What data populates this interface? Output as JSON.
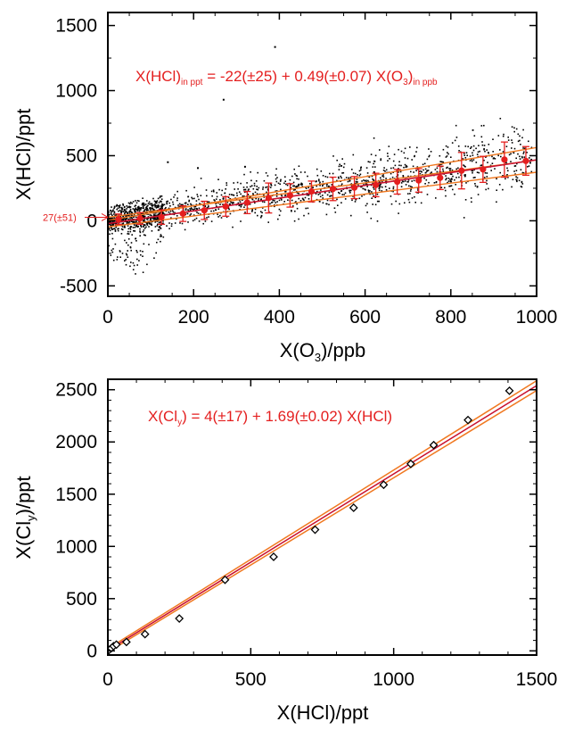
{
  "chart_data": [
    {
      "type": "scatter",
      "xlabel": {
        "main": "X(O",
        "sub": "3",
        "tail": ")/ppb"
      },
      "ylabel": "X(HCl)/ppt",
      "xlim": [
        0,
        1000
      ],
      "ylim": [
        -580,
        1600
      ],
      "xticks": [
        "0",
        "200",
        "400",
        "600",
        "800",
        "1000"
      ],
      "xtick_values": [
        0,
        200,
        400,
        600,
        800,
        1000
      ],
      "yticks": [
        "-500",
        "0",
        "500",
        "1000",
        "1500"
      ],
      "ytick_values": [
        -500,
        0,
        500,
        1000,
        1500
      ],
      "equation": {
        "lhs": "X(HCl)",
        "lhs_sub": "in ppt",
        "rhs_a": " = -22(±25) + 0.49(±0.07) X(O",
        "rhs_a_sub": "3",
        "rhs_b": ")",
        "rhs_b_sub": "in ppb"
      },
      "intercept_label": "27(±51)",
      "intercept_value": 27,
      "fit": {
        "intercept": -22,
        "slope": 0.49
      },
      "fit_upper": {
        "intercept": 3,
        "slope": 0.56
      },
      "fit_lower": {
        "intercept": -47,
        "slope": 0.42
      },
      "fit_inner": {
        "intercept": 27,
        "slope": 0.44
      },
      "binned_means": {
        "x": [
          25,
          75,
          125,
          175,
          225,
          275,
          325,
          375,
          425,
          475,
          525,
          575,
          625,
          675,
          725,
          775,
          825,
          875,
          925,
          975
        ],
        "y": [
          12,
          18,
          28,
          55,
          80,
          110,
          140,
          175,
          195,
          225,
          245,
          255,
          275,
          300,
          310,
          330,
          385,
          395,
          470,
          460
        ],
        "err": [
          40,
          45,
          55,
          60,
          70,
          75,
          85,
          115,
          90,
          80,
          90,
          85,
          90,
          95,
          90,
          90,
          140,
          100,
          135,
          110
        ]
      },
      "scatter_outliers": {
        "x": [
          390,
          270,
          140,
          320,
          210
        ],
        "y": [
          1335,
          930,
          450,
          415,
          405
        ]
      },
      "colors": {
        "points": "#000000",
        "means": "#e41f1f",
        "fit": "#f07820",
        "center_fit": "#c8102e"
      }
    },
    {
      "type": "scatter",
      "xlabel": "X(HCl)/ppt",
      "ylabel": {
        "main": "X(Cl",
        "sub": "y",
        "tail": ")/ppt"
      },
      "xlim": [
        0,
        1500
      ],
      "ylim": [
        -40,
        2600
      ],
      "xticks": [
        "0",
        "500",
        "1000",
        "1500"
      ],
      "xtick_values": [
        0,
        500,
        1000,
        1500
      ],
      "yticks": [
        "0",
        "500",
        "1000",
        "1500",
        "2000",
        "2500"
      ],
      "ytick_values": [
        0,
        500,
        1000,
        1500,
        2000,
        2500
      ],
      "equation": {
        "lhs": "X(Cl",
        "lhs_sub": "y",
        "rhs": ") = 4(±17) + 1.69(±0.02) X(HCl)"
      },
      "fit": {
        "intercept": 4,
        "slope": 1.69
      },
      "fit_upper": {
        "intercept": 21,
        "slope": 1.71
      },
      "fit_lower": {
        "intercept": -13,
        "slope": 1.67
      },
      "points": {
        "x": [
          5,
          12,
          20,
          30,
          65,
          130,
          250,
          410,
          580,
          725,
          860,
          965,
          1060,
          1140,
          1260,
          1405
        ],
        "y": [
          10,
          25,
          45,
          60,
          85,
          160,
          310,
          680,
          900,
          1160,
          1370,
          1590,
          1790,
          1970,
          2210,
          2490
        ]
      },
      "colors": {
        "points": "#000000",
        "fit": "#f07820",
        "center_fit": "#c8102e"
      }
    }
  ]
}
